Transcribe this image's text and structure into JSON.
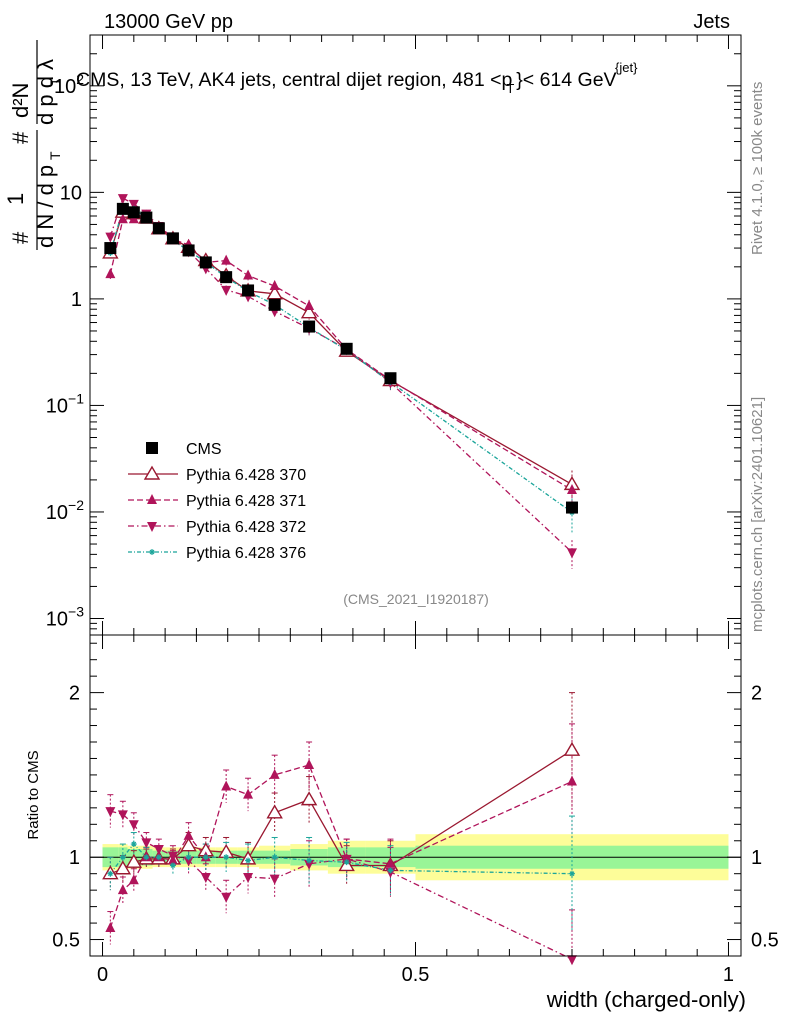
{
  "header": {
    "left": "13000 GeV pp",
    "right": "Jets"
  },
  "side_labels": {
    "rivet": "Rivet 4.1.0, ≥ 100k events",
    "mcplots": "mcplots.cern.ch [arXiv:2401.10621]"
  },
  "colors": {
    "cms": "#000000",
    "p370": "#9a1830",
    "p371": "#b0145a",
    "p372": "#b0145a",
    "p376": "#1ba59a",
    "band_inner": "#99f597",
    "band_outer": "#fdfd99"
  },
  "chart_data": {
    "type": "line",
    "title": "CMS, 13 TeV, AK4 jets, central dijet region, 481 <p_T^{jet}< 614 GeV",
    "title_main": "CMS, 13 TeV, AK4 jets, central dijet region, 481 <p",
    "title_sup": "{jet}",
    "title_sub": "T",
    "title_end": "}< 614 GeV",
    "watermark": "(CMS_2021_I1920187)",
    "xlabel": "width (charged-only)",
    "ylabel": "1/dN/dp_T d²N/dp_T dλ",
    "ratio_ylabel": "Ratio to CMS",
    "xlim": [
      -0.02,
      1.02
    ],
    "ylim": [
      0.0007,
      300
    ],
    "ratio_ylim": [
      0.4,
      2.35
    ],
    "x_ticks": [
      {
        "v": 0,
        "label": "0"
      },
      {
        "v": 0.5,
        "label": "0.5"
      },
      {
        "v": 1,
        "label": "1"
      }
    ],
    "y_ticks": [
      {
        "v": 0.001,
        "base": "10",
        "exp": "−3"
      },
      {
        "v": 0.01,
        "base": "10",
        "exp": "−2"
      },
      {
        "v": 0.1,
        "base": "10",
        "exp": "−1"
      },
      {
        "v": 1,
        "base": "1",
        "exp": ""
      },
      {
        "v": 10,
        "base": "10",
        "exp": ""
      },
      {
        "v": 100,
        "base": "10",
        "exp": "2"
      }
    ],
    "ratio_ticks": [
      {
        "v": 0.5,
        "label": "0.5"
      },
      {
        "v": 1,
        "label": "1"
      },
      {
        "v": 2,
        "label": "2"
      }
    ],
    "bin_edges": [
      0,
      0.025,
      0.04,
      0.06,
      0.08,
      0.1,
      0.125,
      0.15,
      0.18,
      0.215,
      0.25,
      0.3,
      0.36,
      0.42,
      0.5,
      1.0
    ],
    "x": [
      0.0125,
      0.0325,
      0.05,
      0.07,
      0.09,
      0.1125,
      0.1375,
      0.165,
      0.1975,
      0.2325,
      0.275,
      0.33,
      0.39,
      0.46,
      0.75
    ],
    "cms": [
      3.0,
      7.0,
      6.5,
      5.8,
      4.6,
      3.7,
      2.85,
      2.2,
      1.6,
      1.2,
      0.88,
      0.55,
      0.34,
      0.18,
      0.011
    ],
    "band_inner": [
      0.06,
      0.06,
      0.05,
      0.05,
      0.04,
      0.04,
      0.04,
      0.04,
      0.04,
      0.04,
      0.04,
      0.05,
      0.06,
      0.06,
      0.07
    ],
    "band_outer": [
      0.08,
      0.08,
      0.07,
      0.07,
      0.06,
      0.06,
      0.06,
      0.06,
      0.06,
      0.06,
      0.07,
      0.08,
      0.1,
      0.1,
      0.14
    ],
    "series": [
      {
        "name": "Pythia 6.428 370",
        "marker": "tri-up-open",
        "dash": "",
        "color_key": "p370",
        "ratio": [
          0.9,
          0.93,
          0.97,
          0.99,
          0.99,
          0.99,
          1.07,
          1.04,
          1.03,
          0.99,
          1.27,
          1.35,
          0.95,
          0.95,
          1.65
        ],
        "err": [
          0.1,
          0.08,
          0.07,
          0.06,
          0.06,
          0.06,
          0.08,
          0.08,
          0.09,
          0.1,
          0.12,
          0.14,
          0.12,
          0.15,
          0.35
        ]
      },
      {
        "name": "Pythia 6.428 371",
        "marker": "tri-up-filled",
        "dash": "6,3",
        "color_key": "p371",
        "ratio": [
          0.57,
          0.8,
          0.86,
          1.0,
          1.0,
          0.98,
          1.13,
          1.0,
          1.43,
          1.38,
          1.5,
          1.56,
          0.99,
          0.96,
          1.46
        ],
        "err": [
          0.1,
          0.08,
          0.07,
          0.06,
          0.06,
          0.06,
          0.08,
          0.08,
          0.1,
          0.1,
          0.12,
          0.14,
          0.12,
          0.15,
          0.35
        ]
      },
      {
        "name": "Pythia 6.428 372",
        "marker": "tri-down-filled",
        "dash": "6,3,1.5,3",
        "color_key": "p372",
        "ratio": [
          1.28,
          1.26,
          1.2,
          1.09,
          1.05,
          1.01,
          0.98,
          0.88,
          0.76,
          0.88,
          0.87,
          0.96,
          0.99,
          0.91,
          0.38
        ],
        "err": [
          0.1,
          0.08,
          0.07,
          0.06,
          0.06,
          0.06,
          0.08,
          0.08,
          0.1,
          0.1,
          0.12,
          0.14,
          0.12,
          0.15,
          0.3
        ]
      },
      {
        "name": "Pythia 6.428 376",
        "marker": "star",
        "dash": "4,2,1,2",
        "color_key": "p376",
        "ratio": [
          0.9,
          1.0,
          1.08,
          1.0,
          1.0,
          0.95,
          1.0,
          1.0,
          1.0,
          0.98,
          1.0,
          0.98,
          0.97,
          0.92,
          0.9
        ],
        "err": [
          0.1,
          0.08,
          0.07,
          0.06,
          0.06,
          0.06,
          0.08,
          0.08,
          0.09,
          0.1,
          0.12,
          0.14,
          0.12,
          0.15,
          0.35
        ]
      }
    ],
    "legend": {
      "placement": "lower-left",
      "cms_label": "CMS"
    }
  }
}
